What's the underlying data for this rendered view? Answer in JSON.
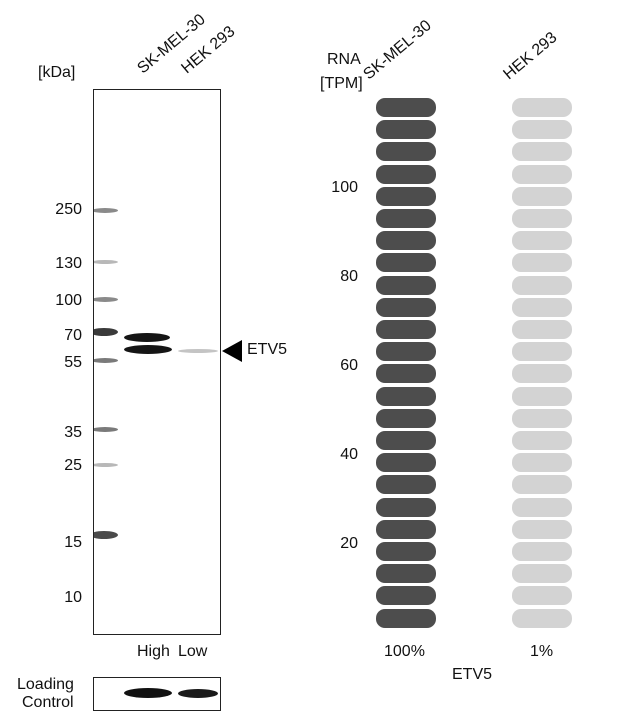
{
  "western_blot": {
    "unit_label": "[kDa]",
    "lanes": [
      "SK-MEL-30",
      "HEK 293"
    ],
    "markers": [
      "250",
      "130",
      "100",
      "70",
      "55",
      "35",
      "25",
      "15",
      "10"
    ],
    "band_label": "ETV5",
    "lane_levels": [
      "High",
      "Low"
    ],
    "loading_control_line1": "Loading",
    "loading_control_line2": "Control"
  },
  "rna": {
    "axis_label_line1": "RNA",
    "axis_label_line2": "[TPM]",
    "y_ticks": [
      "100",
      "80",
      "60",
      "40",
      "20"
    ],
    "gene": "ETV5",
    "colors": {
      "high": "#4d4d4d",
      "low": "#d3d3d3"
    },
    "columns": [
      {
        "name": "SK-MEL-30",
        "percent_label": "100%",
        "filled_fraction": 1.0
      },
      {
        "name": "HEK 293",
        "percent_label": "1%",
        "filled_fraction": 0.0
      }
    ]
  }
}
